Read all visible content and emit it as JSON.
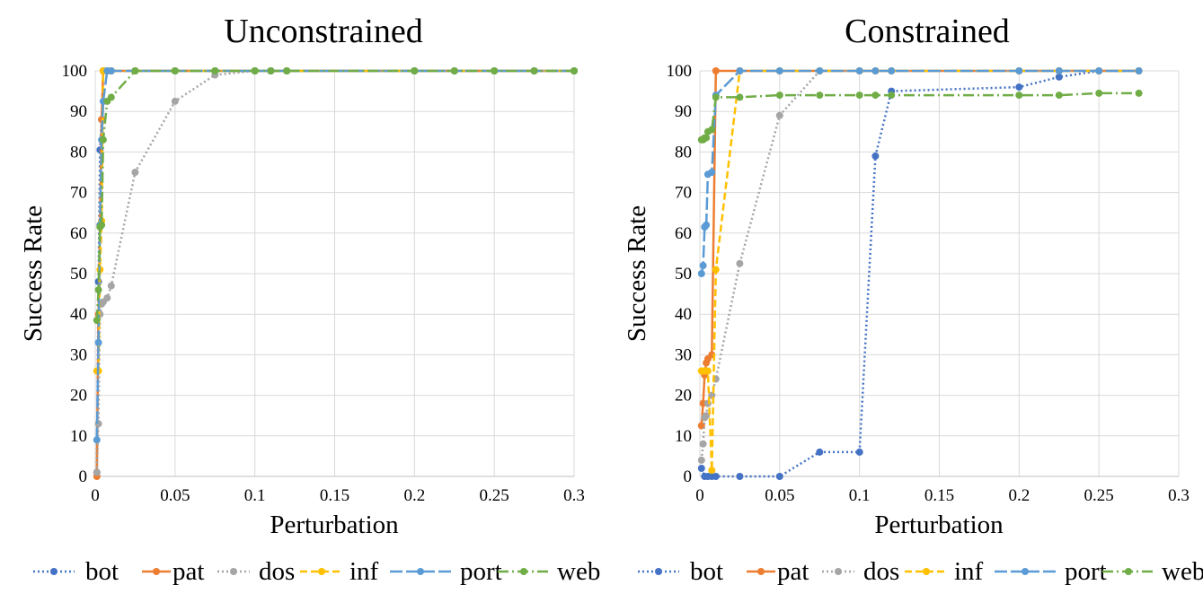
{
  "chart_data": [
    {
      "type": "line",
      "title": "Unconstrained",
      "xlabel": "Perturbation",
      "ylabel": "Success Rate",
      "xlim": [
        0,
        0.3
      ],
      "ylim": [
        0,
        100
      ],
      "xticks": [
        0,
        0.05,
        0.1,
        0.15,
        0.2,
        0.25,
        0.3
      ],
      "xtick_labels": [
        "0",
        "0.05",
        "0.1",
        "0.15",
        "0.2",
        "0.25",
        "0.3"
      ],
      "yticks": [
        0,
        10,
        20,
        30,
        40,
        50,
        60,
        70,
        80,
        90,
        100
      ],
      "ytick_labels": [
        "0",
        "10",
        "20",
        "30",
        "40",
        "50",
        "60",
        "70",
        "80",
        "90",
        "100"
      ],
      "grid": true,
      "legend_position": "bottom",
      "series": [
        {
          "name": "bot",
          "x": [
            0.001,
            0.002,
            0.003,
            0.004,
            0.005,
            0.0075,
            0.01,
            0.025,
            0.05,
            0.075,
            0.1,
            0.11,
            0.12,
            0.2,
            0.225,
            0.25,
            0.275,
            0.3
          ],
          "y": [
            1,
            48,
            80.5,
            88,
            100,
            100,
            100,
            100,
            100,
            100,
            100,
            100,
            100,
            100,
            100,
            100,
            100,
            100
          ]
        },
        {
          "name": "pat",
          "x": [
            0.001,
            0.002,
            0.003,
            0.004,
            0.005,
            0.0075,
            0.01,
            0.025,
            0.05,
            0.075,
            0.1,
            0.11,
            0.12,
            0.2,
            0.225,
            0.25,
            0.275,
            0.3
          ],
          "y": [
            0,
            40,
            62,
            88,
            100,
            100,
            100,
            100,
            100,
            100,
            100,
            100,
            100,
            100,
            100,
            100,
            100,
            100
          ]
        },
        {
          "name": "dos",
          "x": [
            0.001,
            0.002,
            0.003,
            0.004,
            0.005,
            0.0075,
            0.01,
            0.025,
            0.05,
            0.075,
            0.1,
            0.11,
            0.12,
            0.2,
            0.225,
            0.25,
            0.275,
            0.3
          ],
          "y": [
            1,
            13,
            40,
            42.5,
            43,
            44,
            47,
            75,
            92.5,
            99,
            100,
            100,
            100,
            100,
            100,
            100,
            100,
            100
          ]
        },
        {
          "name": "inf",
          "x": [
            0.001,
            0.002,
            0.003,
            0.004,
            0.005,
            0.0075,
            0.01,
            0.025,
            0.05,
            0.075,
            0.1,
            0.11,
            0.12,
            0.2,
            0.225,
            0.25,
            0.275,
            0.3
          ],
          "y": [
            26,
            26,
            51,
            63,
            100,
            100,
            100,
            100,
            100,
            100,
            100,
            100,
            100,
            100,
            100,
            100,
            100,
            100
          ]
        },
        {
          "name": "port",
          "x": [
            0.001,
            0.002,
            0.003,
            0.004,
            0.005,
            0.0075,
            0.01,
            0.025,
            0.05,
            0.075,
            0.1,
            0.11,
            0.12,
            0.2,
            0.225,
            0.25,
            0.275,
            0.3
          ],
          "y": [
            9,
            33,
            62,
            83,
            92.5,
            100,
            100,
            100,
            100,
            100,
            100,
            100,
            100,
            100,
            100,
            100,
            100,
            100
          ]
        },
        {
          "name": "web",
          "x": [
            0.001,
            0.002,
            0.003,
            0.004,
            0.005,
            0.0075,
            0.01,
            0.025,
            0.05,
            0.075,
            0.1,
            0.11,
            0.12,
            0.2,
            0.225,
            0.25,
            0.275,
            0.3
          ],
          "y": [
            38.5,
            46,
            61.5,
            62,
            83,
            92.5,
            93.5,
            100,
            100,
            100,
            100,
            100,
            100,
            100,
            100,
            100,
            100,
            100
          ]
        }
      ]
    },
    {
      "type": "line",
      "title": "Constrained",
      "xlabel": "Perturbation",
      "ylabel": "Success Rate",
      "xlim": [
        0,
        0.3
      ],
      "ylim": [
        0,
        100
      ],
      "xticks": [
        0,
        0.05,
        0.1,
        0.15,
        0.2,
        0.25,
        0.3
      ],
      "xtick_labels": [
        "0",
        "0.05",
        "0.1",
        "0.15",
        "0.2",
        "0.25",
        "0.3"
      ],
      "yticks": [
        0,
        10,
        20,
        30,
        40,
        50,
        60,
        70,
        80,
        90,
        100
      ],
      "ytick_labels": [
        "0",
        "10",
        "20",
        "30",
        "40",
        "50",
        "60",
        "70",
        "80",
        "90",
        "100"
      ],
      "grid": true,
      "legend_position": "bottom",
      "series": [
        {
          "name": "bot",
          "x": [
            0.001,
            0.003,
            0.005,
            0.0075,
            0.01,
            0.025,
            0.05,
            0.075,
            0.1,
            0.11,
            0.12,
            0.2,
            0.225,
            0.25,
            0.275
          ],
          "y": [
            2,
            0,
            0,
            0,
            0,
            0,
            0,
            6,
            6,
            79,
            95,
            96,
            98.5,
            100,
            100
          ]
        },
        {
          "name": "pat",
          "x": [
            0.001,
            0.002,
            0.003,
            0.004,
            0.005,
            0.0075,
            0.01,
            0.025,
            0.05,
            0.075,
            0.1,
            0.11,
            0.12,
            0.2,
            0.225,
            0.25,
            0.275
          ],
          "y": [
            12.5,
            18,
            25,
            28,
            29,
            30,
            100,
            100,
            100,
            100,
            100,
            100,
            100,
            100,
            100,
            100,
            100
          ]
        },
        {
          "name": "dos",
          "x": [
            0.001,
            0.002,
            0.003,
            0.004,
            0.005,
            0.0075,
            0.01,
            0.025,
            0.05,
            0.075,
            0.1,
            0.11,
            0.12,
            0.2,
            0.225,
            0.25,
            0.275
          ],
          "y": [
            4,
            8,
            14.5,
            15,
            18,
            20,
            24,
            52.5,
            89,
            100,
            100,
            100,
            100,
            100,
            100,
            100,
            100
          ]
        },
        {
          "name": "inf",
          "x": [
            0.001,
            0.002,
            0.003,
            0.004,
            0.005,
            0.0075,
            0.01,
            0.025,
            0.05,
            0.075,
            0.1,
            0.11,
            0.12,
            0.2,
            0.225,
            0.25,
            0.275
          ],
          "y": [
            26,
            26,
            26,
            26,
            26,
            1.5,
            51,
            100,
            100,
            100,
            100,
            100,
            100,
            100,
            100,
            100,
            100
          ]
        },
        {
          "name": "port",
          "x": [
            0.001,
            0.002,
            0.003,
            0.004,
            0.005,
            0.0075,
            0.01,
            0.025,
            0.05,
            0.075,
            0.1,
            0.11,
            0.12,
            0.2,
            0.225,
            0.25,
            0.275
          ],
          "y": [
            50,
            52,
            61.5,
            62,
            74.5,
            75,
            94,
            100,
            100,
            100,
            100,
            100,
            100,
            100,
            100,
            100,
            100
          ]
        },
        {
          "name": "web",
          "x": [
            0.001,
            0.002,
            0.003,
            0.004,
            0.005,
            0.0075,
            0.01,
            0.025,
            0.05,
            0.075,
            0.1,
            0.11,
            0.12,
            0.2,
            0.225,
            0.25,
            0.275
          ],
          "y": [
            83,
            83,
            83.5,
            83.5,
            85,
            85.5,
            93.5,
            93.5,
            94,
            94,
            94,
            94,
            94,
            94,
            94,
            94.5,
            94.5
          ]
        }
      ]
    }
  ],
  "styles": {
    "bot": {
      "color": "#4472C4",
      "dash": "2,3"
    },
    "pat": {
      "color": "#ED7D31",
      "dash": ""
    },
    "dos": {
      "color": "#A5A5A5",
      "dash": "2,3"
    },
    "inf": {
      "color": "#FFC000",
      "dash": "8,4"
    },
    "port": {
      "color": "#5B9BD5",
      "dash": "14,4"
    },
    "web": {
      "color": "#70AD47",
      "dash": "12,4,2,4"
    }
  },
  "legend": [
    "bot",
    "pat",
    "dos",
    "inf",
    "port",
    "web"
  ],
  "colors": {
    "grid": "#D9D9D9",
    "axis": "#BFBFBF",
    "background": "#FFFFFF"
  }
}
